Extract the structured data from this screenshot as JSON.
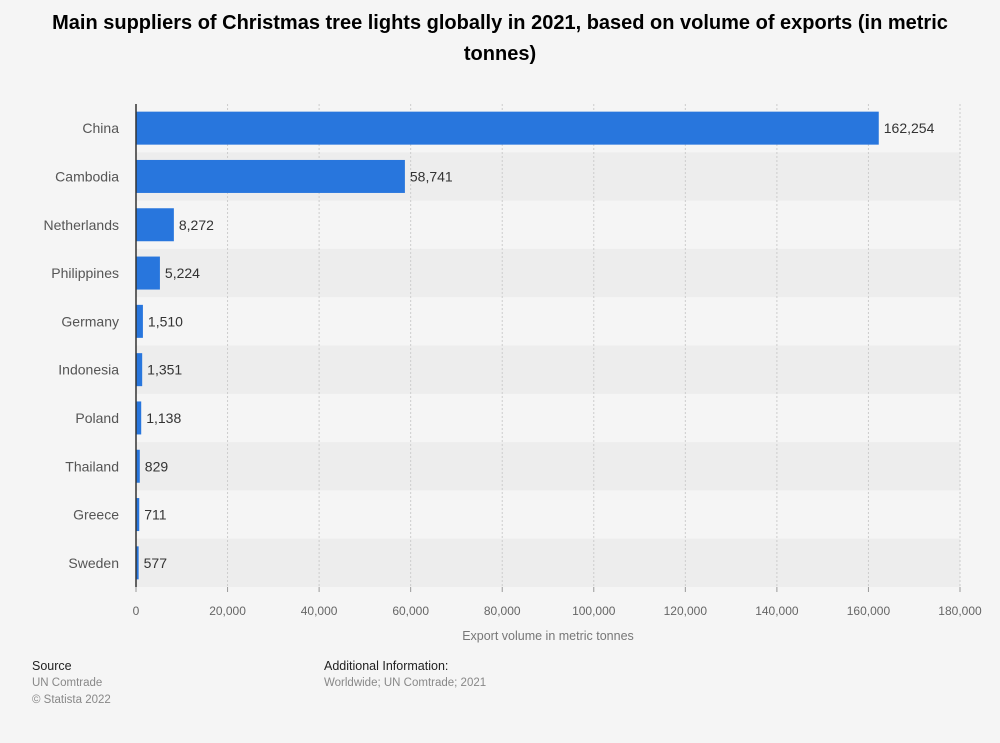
{
  "title": "Main suppliers of Christmas tree lights globally in 2021, based on volume of exports (in metric tonnes)",
  "colors": {
    "bar": "#2876dd",
    "band": "#ededed",
    "grid": "#cccccc",
    "axis": "#333333"
  },
  "chart_data": {
    "type": "bar",
    "orientation": "horizontal",
    "title": "Main suppliers of Christmas tree lights globally in 2021, based on volume of exports (in metric tonnes)",
    "categories": [
      "China",
      "Cambodia",
      "Netherlands",
      "Philippines",
      "Germany",
      "Indonesia",
      "Poland",
      "Thailand",
      "Greece",
      "Sweden"
    ],
    "values": [
      162254,
      58741,
      8272,
      5224,
      1510,
      1351,
      1138,
      829,
      711,
      577
    ],
    "value_labels": [
      "162,254",
      "58,741",
      "8,272",
      "5,224",
      "1,510",
      "1,351",
      "1,138",
      "829",
      "711",
      "577"
    ],
    "xlabel": "Export volume in metric tonnes",
    "ylabel": "",
    "xlim": [
      0,
      180000
    ],
    "ticks": [
      0,
      20000,
      40000,
      60000,
      80000,
      100000,
      120000,
      140000,
      160000,
      180000
    ],
    "tick_labels": [
      "0",
      "20,000",
      "40,000",
      "60,000",
      "80,000",
      "100,000",
      "120,000",
      "140,000",
      "160,000",
      "180,000"
    ],
    "grid": true,
    "legend": false
  },
  "footer": {
    "source_heading": "Source",
    "source_lines": [
      "UN Comtrade",
      "© Statista 2022"
    ],
    "info_heading": "Additional Information:",
    "info_lines": [
      "Worldwide; UN Comtrade; 2021"
    ]
  }
}
